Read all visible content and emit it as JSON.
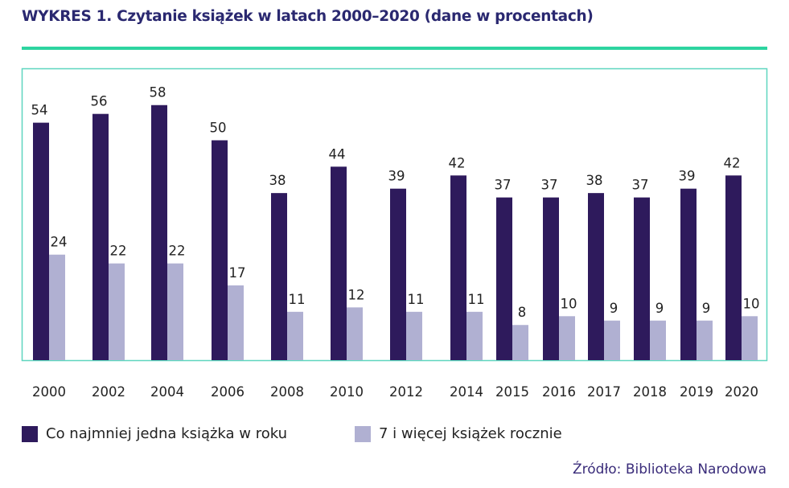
{
  "title": "WYKRES 1. Czytanie książek w latach 2000–2020 (dane w procentach)",
  "source": "Źródło: Biblioteka Narodowa",
  "colors": {
    "dark": "#2e1a5c",
    "light": "#b0b0d2",
    "accent": "#2dd4a0",
    "frame": "#5fd6bf"
  },
  "chart_data": {
    "type": "bar",
    "title": "WYKRES 1. Czytanie książek w latach 2000–2020 (dane w procentach)",
    "categories": [
      "2000",
      "2002",
      "2004",
      "2006",
      "2008",
      "2010",
      "2012",
      "2014",
      "2015",
      "2016",
      "2017",
      "2018",
      "2019",
      "2020"
    ],
    "series": [
      {
        "name": "Co najmniej jedna książka w roku",
        "color": "#2e1a5c",
        "values": [
          54,
          56,
          58,
          50,
          38,
          44,
          39,
          42,
          37,
          37,
          38,
          37,
          39,
          42
        ]
      },
      {
        "name": "7 i więcej książek rocznie",
        "color": "#b0b0d2",
        "values": [
          24,
          22,
          22,
          17,
          11,
          12,
          11,
          11,
          8,
          10,
          9,
          9,
          9,
          10
        ]
      }
    ],
    "ylim": [
      0,
      65
    ],
    "grid": false,
    "legend": "bottom-left",
    "data_labels": true
  }
}
